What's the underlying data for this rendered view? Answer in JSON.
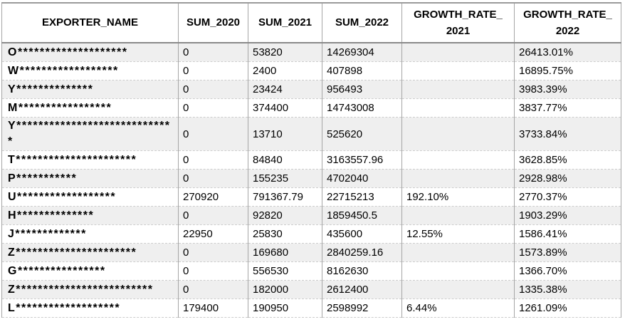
{
  "table": {
    "headers": {
      "exporter": "EXPORTER_NAME",
      "sum2020": "SUM_2020",
      "sum2021": "SUM_2021",
      "sum2022": "SUM_2022",
      "growth2021_line1": "GROWTH_RATE_",
      "growth2021_line2": "2021",
      "growth2022_line1": "GROWTH_RATE_",
      "growth2022_line2": "2022"
    },
    "rows": [
      {
        "exporter": "O********************",
        "sum2020": "0",
        "sum2021": "53820",
        "sum2022": "14269304",
        "growth2021": "",
        "growth2022": "26413.01%"
      },
      {
        "exporter": "W******************",
        "sum2020": "0",
        "sum2021": "2400",
        "sum2022": "407898",
        "growth2021": "",
        "growth2022": "16895.75%"
      },
      {
        "exporter": "Y**************",
        "sum2020": "0",
        "sum2021": "23424",
        "sum2022": "956493",
        "growth2021": "",
        "growth2022": "3983.39%"
      },
      {
        "exporter": "M*****************",
        "sum2020": "0",
        "sum2021": "374400",
        "sum2022": "14743008",
        "growth2021": "",
        "growth2022": "3837.77%"
      },
      {
        "exporter": "Y*****************************",
        "sum2020": "0",
        "sum2021": "13710",
        "sum2022": "525620",
        "growth2021": "",
        "growth2022": "3733.84%"
      },
      {
        "exporter": "T**********************",
        "sum2020": "0",
        "sum2021": "84840",
        "sum2022": "3163557.96",
        "growth2021": "",
        "growth2022": "3628.85%"
      },
      {
        "exporter": "P***********",
        "sum2020": "0",
        "sum2021": "155235",
        "sum2022": "4702040",
        "growth2021": "",
        "growth2022": "2928.98%"
      },
      {
        "exporter": "U******************",
        "sum2020": "270920",
        "sum2021": "791367.79",
        "sum2022": "22715213",
        "growth2021": "192.10%",
        "growth2022": "2770.37%"
      },
      {
        "exporter": "H**************",
        "sum2020": "0",
        "sum2021": "92820",
        "sum2022": "1859450.5",
        "growth2021": "",
        "growth2022": "1903.29%"
      },
      {
        "exporter": "J*************",
        "sum2020": "22950",
        "sum2021": "25830",
        "sum2022": "435600",
        "growth2021": "12.55%",
        "growth2022": "1586.41%"
      },
      {
        "exporter": "Z**********************",
        "sum2020": "0",
        "sum2021": "169680",
        "sum2022": "2840259.16",
        "growth2021": "",
        "growth2022": "1573.89%"
      },
      {
        "exporter": "G****************",
        "sum2020": "0",
        "sum2021": "556530",
        "sum2022": "8162630",
        "growth2021": "",
        "growth2022": "1366.70%"
      },
      {
        "exporter": "Z*************************",
        "sum2020": "0",
        "sum2021": "182000",
        "sum2022": "2612400",
        "growth2021": "",
        "growth2022": "1335.38%"
      },
      {
        "exporter": "L*******************",
        "sum2020": "179400",
        "sum2021": "190950",
        "sum2022": "2598992",
        "growth2021": "6.44%",
        "growth2022": "1261.09%"
      }
    ],
    "colors": {
      "stripe_row": "#efefef",
      "grid_line": "#a6a6a6",
      "row_divider": "#cccccc",
      "header_underline": "#8a8a8a",
      "text": "#000000"
    }
  }
}
